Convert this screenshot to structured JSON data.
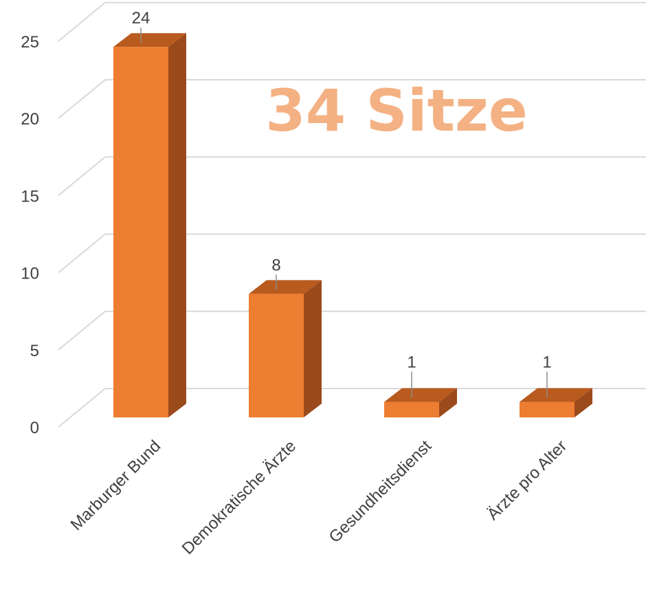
{
  "chart_data": {
    "type": "bar",
    "categories": [
      "Marburger Bund",
      "Demokratische Ärzte",
      "Gesundheitsdienst",
      "Ärzte pro Alter"
    ],
    "values": [
      24,
      8,
      1,
      1
    ],
    "data_labels": [
      "24",
      "8",
      "1",
      "1"
    ],
    "annotation": "34 Sitze",
    "ylim": [
      0,
      25
    ],
    "yticks": [
      "0",
      "5",
      "10",
      "15",
      "20",
      "25"
    ],
    "grid": true,
    "style": "3d-column"
  },
  "colors": {
    "bar_front": "#ED7D31",
    "bar_top": "#B95A1E",
    "bar_side": "#9B4A1C",
    "annotation": "#F4B183",
    "grid": "#D9D9D9",
    "text": "#404040"
  }
}
